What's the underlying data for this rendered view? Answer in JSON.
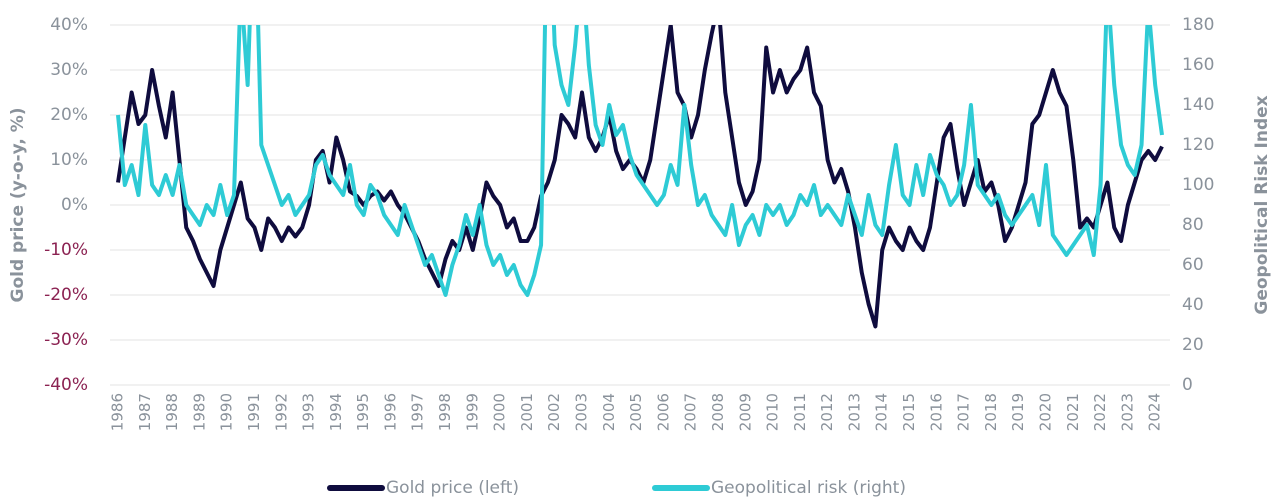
{
  "chart_data": {
    "type": "line",
    "y_label": "Gold price (y-o-y, %)",
    "y2_label": "Geopolitical Risk Index",
    "xlim": [
      1986,
      2024.25
    ],
    "xticks": [
      1986,
      1987,
      1988,
      1989,
      1990,
      1991,
      1992,
      1993,
      1994,
      1995,
      1996,
      1997,
      1998,
      1999,
      2000,
      2001,
      2002,
      2003,
      2004,
      2005,
      2006,
      2007,
      2008,
      2009,
      2010,
      2011,
      2012,
      2013,
      2014,
      2015,
      2016,
      2017,
      2018,
      2019,
      2020,
      2021,
      2022,
      2023,
      2024
    ],
    "ylim": [
      -40,
      40
    ],
    "yticks": [
      {
        "value": 40,
        "label": "40%"
      },
      {
        "value": 30,
        "label": "30%"
      },
      {
        "value": 20,
        "label": "20%"
      },
      {
        "value": 10,
        "label": "10%"
      },
      {
        "value": 0,
        "label": "0%"
      },
      {
        "value": -10,
        "label": "-10%"
      },
      {
        "value": -20,
        "label": "-20%"
      },
      {
        "value": -30,
        "label": "-30%"
      },
      {
        "value": -40,
        "label": "-40%"
      }
    ],
    "y2lim": [
      0,
      180
    ],
    "y2ticks": [
      0,
      20,
      40,
      60,
      80,
      100,
      120,
      140,
      160,
      180
    ],
    "grid": true,
    "negative_tick_color": "#8b2252",
    "x": [
      1986,
      1986.25,
      1986.5,
      1986.75,
      1987,
      1987.25,
      1987.5,
      1987.75,
      1988,
      1988.25,
      1988.5,
      1988.75,
      1989,
      1989.25,
      1989.5,
      1989.75,
      1990,
      1990.25,
      1990.5,
      1990.75,
      1991,
      1991.25,
      1991.5,
      1991.75,
      1992,
      1992.25,
      1992.5,
      1992.75,
      1993,
      1993.25,
      1993.5,
      1993.75,
      1994,
      1994.25,
      1994.5,
      1994.75,
      1995,
      1995.25,
      1995.5,
      1995.75,
      1996,
      1996.25,
      1996.5,
      1996.75,
      1997,
      1997.25,
      1997.5,
      1997.75,
      1998,
      1998.25,
      1998.5,
      1998.75,
      1999,
      1999.25,
      1999.5,
      1999.75,
      2000,
      2000.25,
      2000.5,
      2000.75,
      2001,
      2001.25,
      2001.5,
      2001.75,
      2002,
      2002.25,
      2002.5,
      2002.75,
      2003,
      2003.25,
      2003.5,
      2003.75,
      2004,
      2004.25,
      2004.5,
      2004.75,
      2005,
      2005.25,
      2005.5,
      2005.75,
      2006,
      2006.25,
      2006.5,
      2006.75,
      2007,
      2007.25,
      2007.5,
      2007.75,
      2008,
      2008.25,
      2008.5,
      2008.75,
      2009,
      2009.25,
      2009.5,
      2009.75,
      2010,
      2010.25,
      2010.5,
      2010.75,
      2011,
      2011.25,
      2011.5,
      2011.75,
      2012,
      2012.25,
      2012.5,
      2012.75,
      2013,
      2013.25,
      2013.5,
      2013.75,
      2014,
      2014.25,
      2014.5,
      2014.75,
      2015,
      2015.25,
      2015.5,
      2015.75,
      2016,
      2016.25,
      2016.5,
      2016.75,
      2017,
      2017.25,
      2017.5,
      2017.75,
      2018,
      2018.25,
      2018.5,
      2018.75,
      2019,
      2019.25,
      2019.5,
      2019.75,
      2020,
      2020.25,
      2020.5,
      2020.75,
      2021,
      2021.25,
      2021.5,
      2021.75,
      2022,
      2022.25,
      2022.5,
      2022.75,
      2023,
      2023.25,
      2023.5,
      2023.75,
      2024,
      2024.25
    ],
    "series": [
      {
        "name": "Gold price (left)",
        "color": "#0f0c3e",
        "values": [
          5,
          15,
          25,
          18,
          20,
          30,
          22,
          15,
          25,
          10,
          -5,
          -8,
          -12,
          -15,
          -18,
          -10,
          -5,
          0,
          5,
          -3,
          -5,
          -10,
          -3,
          -5,
          -8,
          -5,
          -7,
          -5,
          0,
          10,
          12,
          5,
          15,
          10,
          3,
          2,
          0,
          2,
          3,
          1,
          3,
          0,
          -2,
          -5,
          -8,
          -12,
          -15,
          -18,
          -12,
          -8,
          -10,
          -5,
          -10,
          -3,
          5,
          2,
          0,
          -5,
          -3,
          -8,
          -8,
          -5,
          2,
          5,
          10,
          20,
          18,
          15,
          25,
          15,
          12,
          15,
          20,
          12,
          8,
          10,
          8,
          5,
          10,
          20,
          30,
          40,
          25,
          22,
          15,
          20,
          30,
          38,
          45,
          25,
          15,
          5,
          0,
          3,
          10,
          35,
          25,
          30,
          25,
          28,
          30,
          35,
          25,
          22,
          10,
          5,
          8,
          3,
          -5,
          -15,
          -22,
          -27,
          -10,
          -5,
          -8,
          -10,
          -5,
          -8,
          -10,
          -5,
          5,
          15,
          18,
          8,
          0,
          5,
          10,
          3,
          5,
          0,
          -8,
          -5,
          0,
          5,
          18,
          20,
          25,
          30,
          25,
          22,
          10,
          -5,
          -3,
          -5,
          0,
          5,
          -5,
          -8,
          0,
          5,
          10,
          12,
          10,
          13
        ]
      },
      {
        "name": "Geopolitical risk (right)",
        "color": "#2ecbd5",
        "axis": "y2",
        "values": [
          135,
          100,
          110,
          95,
          130,
          100,
          95,
          105,
          95,
          110,
          90,
          85,
          80,
          90,
          85,
          100,
          85,
          95,
          200,
          150,
          250,
          120,
          110,
          100,
          90,
          95,
          85,
          90,
          95,
          110,
          115,
          105,
          100,
          95,
          110,
          90,
          85,
          100,
          95,
          85,
          80,
          75,
          90,
          80,
          70,
          60,
          65,
          55,
          45,
          60,
          70,
          85,
          75,
          90,
          70,
          60,
          65,
          55,
          60,
          50,
          45,
          55,
          70,
          260,
          170,
          150,
          140,
          170,
          210,
          160,
          130,
          120,
          140,
          125,
          130,
          115,
          105,
          100,
          95,
          90,
          95,
          110,
          100,
          140,
          110,
          90,
          95,
          85,
          80,
          75,
          90,
          70,
          80,
          85,
          75,
          90,
          85,
          90,
          80,
          85,
          95,
          90,
          100,
          85,
          90,
          85,
          80,
          95,
          85,
          75,
          95,
          80,
          75,
          100,
          120,
          95,
          90,
          110,
          95,
          115,
          105,
          100,
          90,
          95,
          110,
          140,
          100,
          95,
          90,
          95,
          85,
          80,
          85,
          90,
          95,
          80,
          110,
          75,
          70,
          65,
          70,
          75,
          80,
          65,
          100,
          200,
          150,
          120,
          110,
          105,
          120,
          190,
          150,
          125
        ]
      }
    ]
  }
}
